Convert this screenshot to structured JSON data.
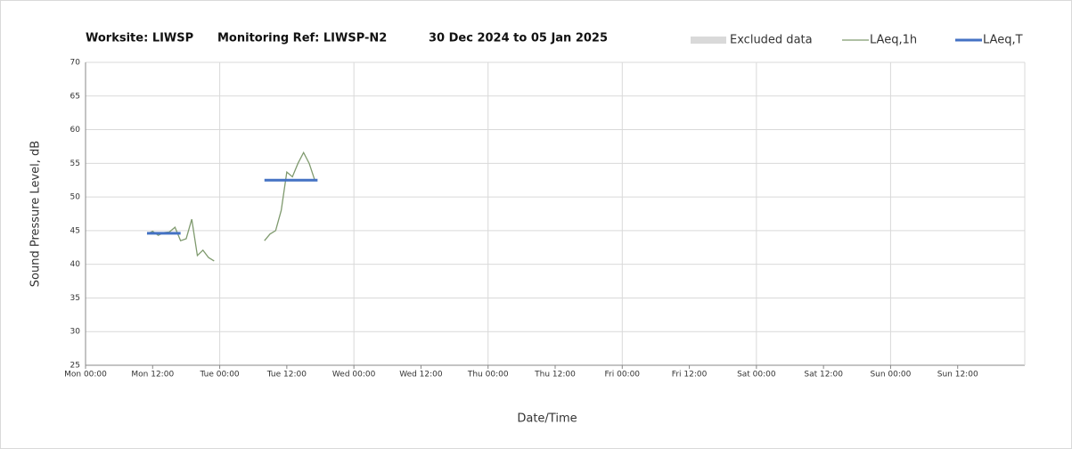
{
  "chart_data": {
    "type": "line",
    "title": [
      "Worksite: LIWSP",
      "Monitoring Ref: LIWSP-N2",
      "30 Dec 2024 to 05 Jan 2025"
    ],
    "xlabel": "Date/Time",
    "ylabel": "Sound Pressure Level, dB",
    "xlim": [
      0,
      168
    ],
    "ylim": [
      25,
      70
    ],
    "xticks": [
      {
        "value": 0,
        "label": "Mon 00:00"
      },
      {
        "value": 12,
        "label": "Mon 12:00"
      },
      {
        "value": 24,
        "label": "Tue 00:00"
      },
      {
        "value": 36,
        "label": "Tue 12:00"
      },
      {
        "value": 48,
        "label": "Wed 00:00"
      },
      {
        "value": 60,
        "label": "Wed 12:00"
      },
      {
        "value": 72,
        "label": "Thu 00:00"
      },
      {
        "value": 84,
        "label": "Thu 12:00"
      },
      {
        "value": 96,
        "label": "Fri 00:00"
      },
      {
        "value": 108,
        "label": "Fri 12:00"
      },
      {
        "value": 120,
        "label": "Sat 00:00"
      },
      {
        "value": 132,
        "label": "Sat 12:00"
      },
      {
        "value": 144,
        "label": "Sun 00:00"
      },
      {
        "value": 156,
        "label": "Sun 12:00"
      }
    ],
    "yticks": [
      25,
      30,
      35,
      40,
      45,
      50,
      55,
      60,
      65,
      70
    ],
    "grid": true,
    "legend": "top",
    "series": [
      {
        "name": "Excluded data",
        "color": "#d9d9d9"
      },
      {
        "name": "LAeq,1h",
        "color": "#7f9a6e",
        "x": [
          11,
          12,
          13,
          14,
          15,
          16,
          17,
          18,
          19,
          20,
          21,
          22,
          23,
          28,
          32,
          33,
          34,
          35,
          36,
          37,
          38,
          39,
          40,
          41
        ],
        "values": [
          44.5,
          44.9,
          44.3,
          44.7,
          44.8,
          45.5,
          43.5,
          43.8,
          46.7,
          41.3,
          42.1,
          41.0,
          40.5,
          null,
          43.5,
          44.5,
          45.0,
          48.0,
          53.7,
          53.0,
          55.0,
          56.6,
          55.0,
          52.5
        ]
      },
      {
        "name": "LAeq,T",
        "color": "#4472c4",
        "x": [
          11,
          17,
          28,
          32,
          41.5
        ],
        "values": [
          44.6,
          44.6,
          null,
          52.5,
          52.5
        ]
      }
    ]
  }
}
